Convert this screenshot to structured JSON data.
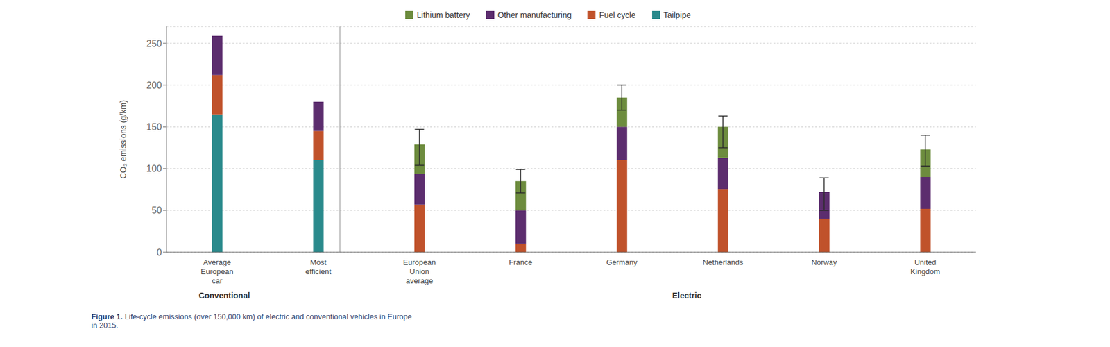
{
  "chart_data": {
    "type": "bar",
    "stacked": true,
    "grid": true,
    "legend": "top",
    "categories": [
      "Average\nEuropean\ncar",
      "Most\nefficient",
      "European\nUnion\naverage",
      "France",
      "Germany",
      "Netherlands",
      "Norway",
      "United\nKingdom"
    ],
    "series": [
      {
        "name": "Tailpipe",
        "color": "#2a8a8c",
        "values": [
          165,
          110,
          0,
          0,
          0,
          0,
          0,
          0
        ]
      },
      {
        "name": "Fuel cycle",
        "color": "#c0522b",
        "values": [
          47,
          35,
          57,
          10,
          110,
          75,
          40,
          52
        ]
      },
      {
        "name": "Other manufacturing",
        "color": "#5c2d6e",
        "values": [
          47,
          35,
          37,
          40,
          40,
          38,
          32,
          38
        ]
      },
      {
        "name": "Lithium battery",
        "color": "#6d8c3e",
        "values": [
          0,
          0,
          35,
          35,
          35,
          37,
          0,
          33
        ]
      }
    ],
    "error_low": [
      null,
      null,
      25,
      14,
      15,
      25,
      22,
      20
    ],
    "error_high": [
      null,
      null,
      18,
      14,
      15,
      13,
      17,
      17
    ],
    "groups": [
      {
        "name": "Conventional",
        "count": 2
      },
      {
        "name": "Electric",
        "count": 6
      }
    ],
    "ylabel": "CO₂ emissions (g/km)",
    "ylim": [
      0,
      270
    ],
    "yticks": [
      0,
      50,
      100,
      150,
      200,
      250
    ],
    "caption_bold": "Figure 1.",
    "caption": " Life-cycle emissions (over 150,000 km) of electric and conventional vehicles in Europe\nin 2015."
  }
}
